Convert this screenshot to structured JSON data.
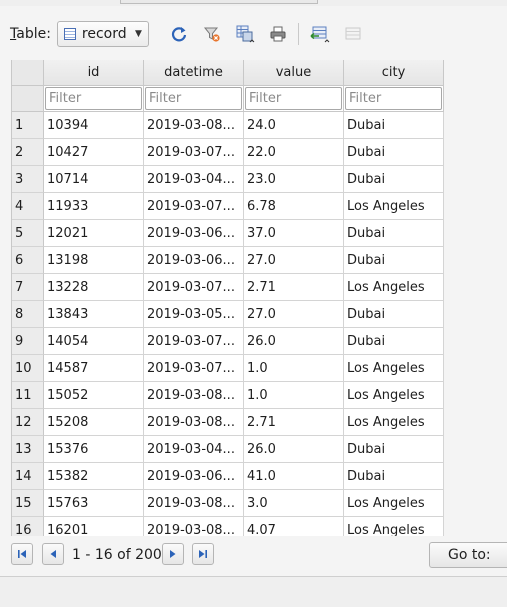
{
  "toolbar": {
    "table_label_prefix": "T",
    "table_label_rest": "able:",
    "table_value": "record",
    "icons": [
      "refresh-icon",
      "clear-filters-icon",
      "save-table-icon",
      "print-icon",
      "insert-record-icon",
      "delete-record-icon"
    ]
  },
  "grid": {
    "columns": [
      "id",
      "datetime",
      "value",
      "city"
    ],
    "filter_placeholder": "Filter",
    "rows": [
      {
        "n": "1",
        "id": "10394",
        "datetime": "2019-03-08...",
        "value": "24.0",
        "city": "Dubai"
      },
      {
        "n": "2",
        "id": "10427",
        "datetime": "2019-03-07...",
        "value": "22.0",
        "city": "Dubai"
      },
      {
        "n": "3",
        "id": "10714",
        "datetime": "2019-03-04...",
        "value": "23.0",
        "city": "Dubai"
      },
      {
        "n": "4",
        "id": "11933",
        "datetime": "2019-03-07...",
        "value": "6.78",
        "city": "Los Angeles"
      },
      {
        "n": "5",
        "id": "12021",
        "datetime": "2019-03-06...",
        "value": "37.0",
        "city": "Dubai"
      },
      {
        "n": "6",
        "id": "13198",
        "datetime": "2019-03-06...",
        "value": "27.0",
        "city": "Dubai"
      },
      {
        "n": "7",
        "id": "13228",
        "datetime": "2019-03-07...",
        "value": "2.71",
        "city": "Los Angeles"
      },
      {
        "n": "8",
        "id": "13843",
        "datetime": "2019-03-05...",
        "value": "27.0",
        "city": "Dubai"
      },
      {
        "n": "9",
        "id": "14054",
        "datetime": "2019-03-07...",
        "value": "26.0",
        "city": "Dubai"
      },
      {
        "n": "10",
        "id": "14587",
        "datetime": "2019-03-07...",
        "value": "1.0",
        "city": "Los Angeles"
      },
      {
        "n": "11",
        "id": "15052",
        "datetime": "2019-03-08...",
        "value": "1.0",
        "city": "Los Angeles"
      },
      {
        "n": "12",
        "id": "15208",
        "datetime": "2019-03-08...",
        "value": "2.71",
        "city": "Los Angeles"
      },
      {
        "n": "13",
        "id": "15376",
        "datetime": "2019-03-04...",
        "value": "26.0",
        "city": "Dubai"
      },
      {
        "n": "14",
        "id": "15382",
        "datetime": "2019-03-06...",
        "value": "41.0",
        "city": "Dubai"
      },
      {
        "n": "15",
        "id": "15763",
        "datetime": "2019-03-08...",
        "value": "3.0",
        "city": "Los Angeles"
      },
      {
        "n": "16",
        "id": "16201",
        "datetime": "2019-03-08...",
        "value": "4.07",
        "city": "Los Angeles"
      }
    ]
  },
  "navigation": {
    "record_count": "1 - 16 of 200",
    "goto_label": "Go to:"
  }
}
